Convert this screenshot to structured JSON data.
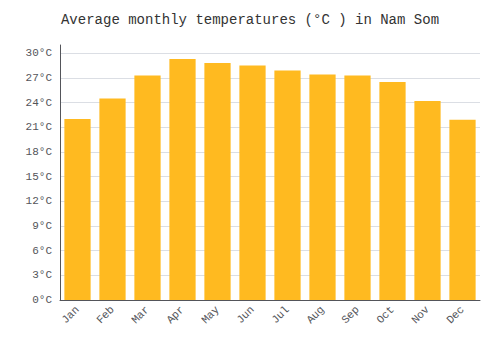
{
  "chart_data": {
    "type": "bar",
    "title": "Average monthly temperatures (°C ) in Nam Som",
    "categories": [
      "Jan",
      "Feb",
      "Mar",
      "Apr",
      "May",
      "Jun",
      "Jul",
      "Aug",
      "Sep",
      "Oct",
      "Nov",
      "Dec"
    ],
    "values": [
      22.0,
      24.5,
      27.3,
      29.3,
      28.8,
      28.5,
      27.9,
      27.4,
      27.3,
      26.5,
      24.2,
      21.9
    ],
    "color": "#FFBA20",
    "ylim": [
      0,
      31
    ],
    "yticks": [
      {
        "value": 0,
        "label": "0°C"
      },
      {
        "value": 3,
        "label": "3°C"
      },
      {
        "value": 6,
        "label": "6°C"
      },
      {
        "value": 9,
        "label": "9°C"
      },
      {
        "value": 12,
        "label": "12°C"
      },
      {
        "value": 15,
        "label": "15°C"
      },
      {
        "value": 18,
        "label": "18°C"
      },
      {
        "value": 21,
        "label": "21°C"
      },
      {
        "value": 24,
        "label": "24°C"
      },
      {
        "value": 27,
        "label": "27°C"
      },
      {
        "value": 30,
        "label": "30°C"
      }
    ],
    "grid": true
  }
}
